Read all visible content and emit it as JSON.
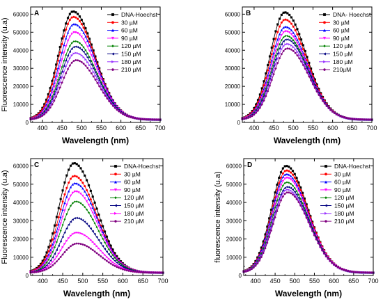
{
  "chart_data": [
    {
      "type": "line",
      "panel": "A",
      "xlabel": "Wavelength (nm)",
      "ylabel": "Fluorescence intensity (u.a)",
      "xlim": [
        370,
        700
      ],
      "ylim": [
        0,
        64000
      ],
      "xticks": [
        400,
        450,
        500,
        550,
        600,
        650,
        700
      ],
      "yticks": [
        0,
        10000,
        20000,
        30000,
        40000,
        50000,
        60000
      ],
      "legend": "top-right",
      "grid": false,
      "series": [
        {
          "name": "DNA-Hoechst",
          "color": "#000000",
          "marker": "square",
          "peak": 61500,
          "peak_x": 478
        },
        {
          "name": "30 µM",
          "color": "#ff0000",
          "marker": "circle",
          "peak": 58500,
          "peak_x": 479
        },
        {
          "name": "60 µM",
          "color": "#0000ff",
          "marker": "triangle",
          "peak": 54500,
          "peak_x": 481
        },
        {
          "name": "90 µM",
          "color": "#ff00ff",
          "marker": "triangle-down",
          "peak": 50000,
          "peak_x": 482
        },
        {
          "name": "120 µM",
          "color": "#008000",
          "marker": "diamond",
          "peak": 45000,
          "peak_x": 483
        },
        {
          "name": "150 µM",
          "color": "#000080",
          "marker": "triangle-left",
          "peak": 42000,
          "peak_x": 484
        },
        {
          "name": "180 µM",
          "color": "#9933ff",
          "marker": "triangle-right",
          "peak": 38500,
          "peak_x": 485
        },
        {
          "name": "210 µM",
          "color": "#800080",
          "marker": "hexagon",
          "peak": 34500,
          "peak_x": 486
        }
      ]
    },
    {
      "type": "line",
      "panel": "B",
      "xlabel": "Wavelength (nm)",
      "ylabel": "",
      "xlim": [
        370,
        700
      ],
      "ylim": [
        0,
        64000
      ],
      "xticks": [
        400,
        450,
        500,
        550,
        600,
        650,
        700
      ],
      "yticks": [
        0,
        10000,
        20000,
        30000,
        40000,
        50000,
        60000
      ],
      "legend": "top-right",
      "grid": false,
      "series": [
        {
          "name": "DNA- Hoechst",
          "color": "#000000",
          "marker": "square",
          "peak": 61000,
          "peak_x": 478
        },
        {
          "name": "30 µM",
          "color": "#ff0000",
          "marker": "circle",
          "peak": 57000,
          "peak_x": 479
        },
        {
          "name": "60 µM",
          "color": "#0000ff",
          "marker": "triangle",
          "peak": 53000,
          "peak_x": 480
        },
        {
          "name": "90 µM",
          "color": "#ff00ff",
          "marker": "triangle-down",
          "peak": 50500,
          "peak_x": 481
        },
        {
          "name": "120 µM",
          "color": "#008000",
          "marker": "diamond",
          "peak": 48000,
          "peak_x": 482
        },
        {
          "name": "150 µM",
          "color": "#000080",
          "marker": "triangle-left",
          "peak": 46000,
          "peak_x": 483
        },
        {
          "name": "180 µM",
          "color": "#9933ff",
          "marker": "triangle-right",
          "peak": 43500,
          "peak_x": 484
        },
        {
          "name": "210µM",
          "color": "#800080",
          "marker": "hexagon",
          "peak": 41000,
          "peak_x": 485
        }
      ]
    },
    {
      "type": "line",
      "panel": "C",
      "xlabel": "Wavelength (nm)",
      "ylabel": "Fluorescence intensity (u.a)",
      "xlim": [
        370,
        700
      ],
      "ylim": [
        0,
        64000
      ],
      "xticks": [
        400,
        450,
        500,
        550,
        600,
        650,
        700
      ],
      "yticks": [
        0,
        10000,
        20000,
        30000,
        40000,
        50000,
        60000
      ],
      "legend": "top-right",
      "grid": false,
      "series": [
        {
          "name": "DNA-Hoechst",
          "color": "#000000",
          "marker": "square",
          "peak": 61500,
          "peak_x": 478
        },
        {
          "name": "30 µM",
          "color": "#ff0000",
          "marker": "circle",
          "peak": 54500,
          "peak_x": 479
        },
        {
          "name": "60 µM",
          "color": "#0000ff",
          "marker": "triangle",
          "peak": 50500,
          "peak_x": 481
        },
        {
          "name": "90 µM",
          "color": "#ff00ff",
          "marker": "triangle-down",
          "peak": 46000,
          "peak_x": 482
        },
        {
          "name": "120 µM",
          "color": "#008000",
          "marker": "diamond",
          "peak": 40500,
          "peak_x": 483
        },
        {
          "name": "150 µM",
          "color": "#000080",
          "marker": "triangle-left",
          "peak": 31500,
          "peak_x": 484
        },
        {
          "name": "180 µM",
          "color": "#ff00ff",
          "marker": "triangle-right",
          "peak": 23500,
          "peak_x": 485
        },
        {
          "name": "210 µM",
          "color": "#800080",
          "marker": "hexagon",
          "peak": 17500,
          "peak_x": 486
        }
      ]
    },
    {
      "type": "line",
      "panel": "D",
      "xlabel": "Wavelength (nm)",
      "ylabel": "fluorescence intensity (u.a)",
      "xlim": [
        370,
        700
      ],
      "ylim": [
        0,
        64000
      ],
      "xticks": [
        400,
        450,
        500,
        550,
        600,
        650,
        700
      ],
      "yticks": [
        0,
        10000,
        20000,
        30000,
        40000,
        50000,
        60000
      ],
      "legend": "top-right",
      "grid": false,
      "series": [
        {
          "name": "DNA-Hoechst",
          "color": "#000000",
          "marker": "square",
          "peak": 60000,
          "peak_x": 478
        },
        {
          "name": "30 µM",
          "color": "#ff0000",
          "marker": "circle",
          "peak": 57500,
          "peak_x": 479
        },
        {
          "name": "60 µM",
          "color": "#0000ff",
          "marker": "triangle",
          "peak": 55500,
          "peak_x": 479
        },
        {
          "name": "90 µM",
          "color": "#ff00ff",
          "marker": "triangle-down",
          "peak": 53500,
          "peak_x": 480
        },
        {
          "name": "120 µM",
          "color": "#008000",
          "marker": "diamond",
          "peak": 51000,
          "peak_x": 480
        },
        {
          "name": "150 µM",
          "color": "#000080",
          "marker": "triangle-left",
          "peak": 48500,
          "peak_x": 481
        },
        {
          "name": "180 µM",
          "color": "#9933ff",
          "marker": "triangle-right",
          "peak": 47000,
          "peak_x": 481
        },
        {
          "name": "210 µM",
          "color": "#800080",
          "marker": "hexagon",
          "peak": 45500,
          "peak_x": 482
        }
      ]
    }
  ]
}
